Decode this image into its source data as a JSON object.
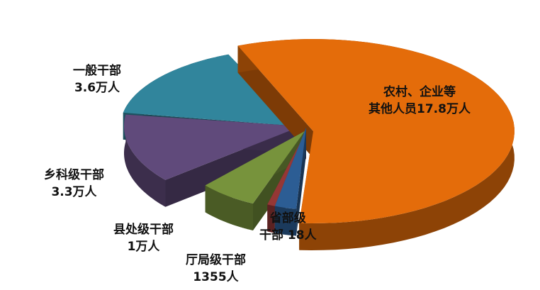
{
  "chart_data": {
    "type": "pie",
    "style": "3d-exploded",
    "slices": [
      {
        "name": "农村、企业等其他人员",
        "value": 178000,
        "label_line1": "农村、企业等",
        "label_line2": "其他人员17.8万人",
        "color": "#e46c0a"
      },
      {
        "name": "一般干部",
        "value": 36000,
        "label_line1": "一般干部",
        "label_line2": "3.6万人",
        "color": "#31859c"
      },
      {
        "name": "乡科级干部",
        "value": 33000,
        "label_line1": "乡科级干部",
        "label_line2": "3.3万人",
        "color": "#604a7b"
      },
      {
        "name": "县处级干部",
        "value": 10000,
        "label_line1": "县处级干部",
        "label_line2": "1万人",
        "color": "#77933c"
      },
      {
        "name": "厅局级干部",
        "value": 1355,
        "label_line1": "厅局级干部",
        "label_line2": "1355人",
        "color": "#953735"
      },
      {
        "name": "省部级干部",
        "value": 18,
        "label_line1": "省部级",
        "label_line2": "干部 18人",
        "color": "#2c5d94"
      }
    ]
  }
}
